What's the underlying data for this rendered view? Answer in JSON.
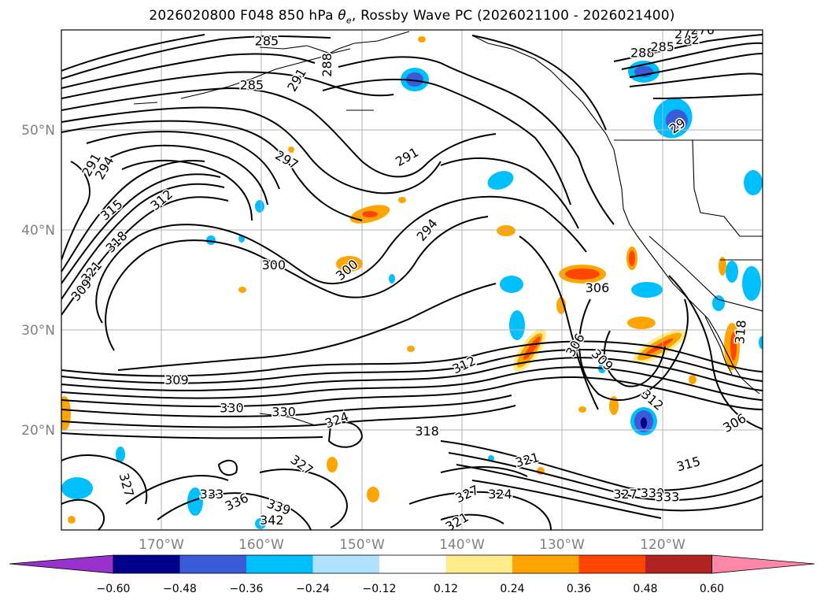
{
  "title": {
    "prefix": "2026020800 F048 850 hPa ",
    "var_symbol": "θ",
    "var_sub": "e",
    "suffix": ", Rossby Wave PC (2026021100 - 2026021400)"
  },
  "map": {
    "lon_range": [
      -180,
      -110
    ],
    "lat_range": [
      10,
      60
    ],
    "lon_ticks": [
      {
        "value": -170,
        "label": "170°W"
      },
      {
        "value": -160,
        "label": "160°W"
      },
      {
        "value": -150,
        "label": "150°W"
      },
      {
        "value": -140,
        "label": "140°W"
      },
      {
        "value": -130,
        "label": "130°W"
      },
      {
        "value": -120,
        "label": "120°W"
      }
    ],
    "lat_ticks": [
      {
        "value": 20,
        "label": "20°N"
      },
      {
        "value": 30,
        "label": "30°N"
      },
      {
        "value": 40,
        "label": "40°N"
      },
      {
        "value": 50,
        "label": "50°N"
      }
    ],
    "contour_labels": [
      {
        "text": "285",
        "lon": -161,
        "lat": 54.5,
        "rot": 0
      },
      {
        "text": "285",
        "lon": -159.5,
        "lat": 58.9,
        "rot": 0
      },
      {
        "text": "291",
        "lon": -156.5,
        "lat": 55,
        "rot": -60
      },
      {
        "text": "288",
        "lon": -153.5,
        "lat": 56.5,
        "rot": -90
      },
      {
        "text": "297",
        "lon": -157.5,
        "lat": 47,
        "rot": 30
      },
      {
        "text": "291",
        "lon": -145.5,
        "lat": 47.3,
        "rot": -30
      },
      {
        "text": "294",
        "lon": -175.7,
        "lat": 46.2,
        "rot": -60
      },
      {
        "text": "291",
        "lon": -177,
        "lat": 46.5,
        "rot": -60
      },
      {
        "text": "315",
        "lon": -175,
        "lat": 42,
        "rot": -40
      },
      {
        "text": "312",
        "lon": -170,
        "lat": 43,
        "rot": -40
      },
      {
        "text": "318",
        "lon": -174.5,
        "lat": 38.8,
        "rot": -45
      },
      {
        "text": "321",
        "lon": -177,
        "lat": 35.8,
        "rot": -50
      },
      {
        "text": "309",
        "lon": -178,
        "lat": 34,
        "rot": -50
      },
      {
        "text": "300",
        "lon": -158.8,
        "lat": 36.5,
        "rot": 0
      },
      {
        "text": "300",
        "lon": -151.5,
        "lat": 36,
        "rot": -40
      },
      {
        "text": "294",
        "lon": -143.5,
        "lat": 40,
        "rot": -50
      },
      {
        "text": "306",
        "lon": -126.5,
        "lat": 34.2,
        "rot": 0
      },
      {
        "text": "306",
        "lon": -128.7,
        "lat": 28.5,
        "rot": -60
      },
      {
        "text": "309",
        "lon": -126,
        "lat": 27,
        "rot": 45
      },
      {
        "text": "312",
        "lon": -121,
        "lat": 23,
        "rot": 40
      },
      {
        "text": "309",
        "lon": -168.5,
        "lat": 25,
        "rot": 0
      },
      {
        "text": "312",
        "lon": -139.8,
        "lat": 26.5,
        "rot": -25
      },
      {
        "text": "330",
        "lon": -163,
        "lat": 22.2,
        "rot": 0
      },
      {
        "text": "330",
        "lon": -157.8,
        "lat": 21.8,
        "rot": 0
      },
      {
        "text": "324",
        "lon": -152.5,
        "lat": 21,
        "rot": -20
      },
      {
        "text": "318",
        "lon": -143.5,
        "lat": 19.9,
        "rot": 0
      },
      {
        "text": "327",
        "lon": -156,
        "lat": 16.5,
        "rot": 35
      },
      {
        "text": "327",
        "lon": -173.5,
        "lat": 14.5,
        "rot": 75
      },
      {
        "text": "333",
        "lon": -165,
        "lat": 13.6,
        "rot": 0
      },
      {
        "text": "336",
        "lon": -162.5,
        "lat": 12.8,
        "rot": -25
      },
      {
        "text": "339",
        "lon": -158.3,
        "lat": 12.3,
        "rot": 20
      },
      {
        "text": "342",
        "lon": -159,
        "lat": 11,
        "rot": 0
      },
      {
        "text": "327",
        "lon": -139.5,
        "lat": 13.6,
        "rot": -25
      },
      {
        "text": "324",
        "lon": -136.2,
        "lat": 13.6,
        "rot": 0
      },
      {
        "text": "321",
        "lon": -133.5,
        "lat": 17,
        "rot": -15
      },
      {
        "text": "321",
        "lon": -140.5,
        "lat": 10.8,
        "rot": -30
      },
      {
        "text": "327",
        "lon": -123.7,
        "lat": 13.6,
        "rot": 0
      },
      {
        "text": "330",
        "lon": -121,
        "lat": 13.7,
        "rot": 0
      },
      {
        "text": "333",
        "lon": -119.5,
        "lat": 13.3,
        "rot": 0
      },
      {
        "text": "315",
        "lon": -117.4,
        "lat": 16.6,
        "rot": -15
      },
      {
        "text": "306",
        "lon": -112.8,
        "lat": 20.7,
        "rot": -30
      },
      {
        "text": "288",
        "lon": -122,
        "lat": 57.7,
        "rot": 0
      },
      {
        "text": "285",
        "lon": -120,
        "lat": 58.3,
        "rot": 0
      },
      {
        "text": "282",
        "lon": -117.5,
        "lat": 59,
        "rot": 0
      },
      {
        "text": "279",
        "lon": -117.6,
        "lat": 59.6,
        "rot": 0
      },
      {
        "text": "276",
        "lon": -116,
        "lat": 60,
        "rot": 0
      },
      {
        "text": "29",
        "lon": -118.5,
        "lat": 50.4,
        "rot": -35
      },
      {
        "text": "318",
        "lon": -112.2,
        "lat": 29.8,
        "rot": -85
      }
    ]
  },
  "colorbar": {
    "colors": [
      "#9932cc",
      "#00008b",
      "#3b5bd6",
      "#00bfff",
      "#b0e2ff",
      "#ffffff",
      "#ffec8b",
      "#ffa500",
      "#ff4500",
      "#b22222",
      "#ff88aa"
    ],
    "tick_labels": [
      "−0.60",
      "−0.48",
      "−0.36",
      "−0.24",
      "−0.12",
      "0.12",
      "0.24",
      "0.36",
      "0.48",
      "0.60"
    ]
  }
}
